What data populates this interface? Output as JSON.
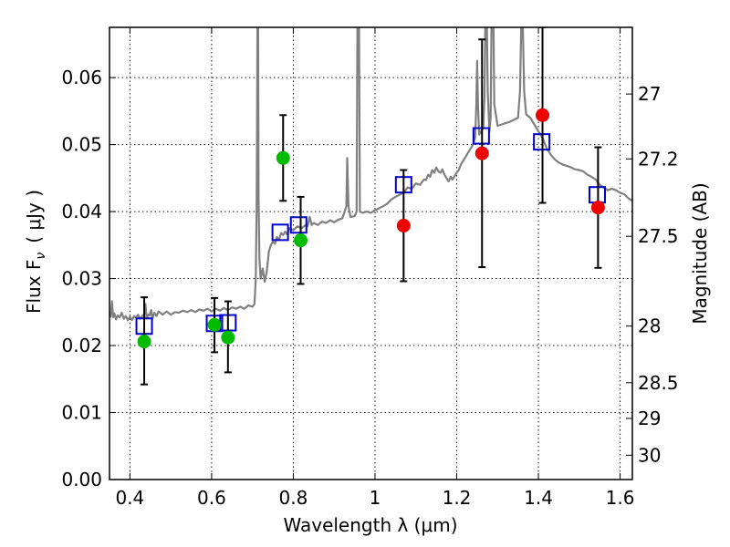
{
  "chart_data": {
    "type": "scatter",
    "title": "",
    "xlabel": "Wavelength  λ (μm)",
    "ylabel": "Flux  F",
    "ylabel_sub": "ν",
    "ylabel_unit": "( μJy )",
    "y2label": "Magnitude (AB)",
    "xlim": [
      0.35,
      1.63
    ],
    "ylim": [
      0.0,
      0.0675
    ],
    "grid": true,
    "xticks": [
      {
        "value": 0.4,
        "label": "0.4"
      },
      {
        "value": 0.6,
        "label": "0.6"
      },
      {
        "value": 0.8,
        "label": "0.8"
      },
      {
        "value": 1.0,
        "label": "1"
      },
      {
        "value": 1.2,
        "label": "1.2"
      },
      {
        "value": 1.4,
        "label": "1.4"
      },
      {
        "value": 1.6,
        "label": "1.6"
      }
    ],
    "yticks": [
      {
        "value": 0.0,
        "label": "0.00"
      },
      {
        "value": 0.01,
        "label": "0.01"
      },
      {
        "value": 0.02,
        "label": "0.02"
      },
      {
        "value": 0.03,
        "label": "0.03"
      },
      {
        "value": 0.04,
        "label": "0.04"
      },
      {
        "value": 0.05,
        "label": "0.05"
      },
      {
        "value": 0.06,
        "label": "0.06"
      }
    ],
    "y2ticks": [
      {
        "mag": 27,
        "label": "27"
      },
      {
        "mag": 27.2,
        "label": "27.2"
      },
      {
        "mag": 27.5,
        "label": "27.5"
      },
      {
        "mag": 28,
        "label": "28"
      },
      {
        "mag": 28.5,
        "label": "28.5"
      },
      {
        "mag": 29,
        "label": "29"
      },
      {
        "mag": 30,
        "label": "30"
      }
    ],
    "colors": {
      "model": "#808080",
      "template": "#0000cc",
      "optical": "#00bb00",
      "infrared": "#ee0000",
      "errorbar": "#000000"
    },
    "series": [
      {
        "kind": "line",
        "color": "model",
        "points": [
          [
            0.35,
            0.025
          ],
          [
            0.353,
            0.0243
          ],
          [
            0.356,
            0.0266
          ],
          [
            0.359,
            0.0242
          ],
          [
            0.362,
            0.0248
          ],
          [
            0.366,
            0.0239
          ],
          [
            0.37,
            0.0245
          ],
          [
            0.375,
            0.0242
          ],
          [
            0.38,
            0.0249
          ],
          [
            0.385,
            0.024
          ],
          [
            0.39,
            0.0244
          ],
          [
            0.395,
            0.0238
          ],
          [
            0.4,
            0.0243
          ],
          [
            0.405,
            0.0238
          ],
          [
            0.41,
            0.0244
          ],
          [
            0.415,
            0.0242
          ],
          [
            0.42,
            0.0246
          ],
          [
            0.425,
            0.024
          ],
          [
            0.43,
            0.0244
          ],
          [
            0.435,
            0.0247
          ],
          [
            0.438,
            0.0262
          ],
          [
            0.441,
            0.024
          ],
          [
            0.445,
            0.0246
          ],
          [
            0.448,
            0.0245
          ],
          [
            0.452,
            0.0253
          ],
          [
            0.455,
            0.024
          ],
          [
            0.46,
            0.0249
          ],
          [
            0.465,
            0.0244
          ],
          [
            0.47,
            0.0251
          ],
          [
            0.48,
            0.0246
          ],
          [
            0.49,
            0.0251
          ],
          [
            0.5,
            0.0246
          ],
          [
            0.51,
            0.025
          ],
          [
            0.52,
            0.0249
          ],
          [
            0.53,
            0.0252
          ],
          [
            0.54,
            0.025
          ],
          [
            0.55,
            0.0253
          ],
          [
            0.56,
            0.025
          ],
          [
            0.57,
            0.0254
          ],
          [
            0.58,
            0.0252
          ],
          [
            0.59,
            0.0255
          ],
          [
            0.6,
            0.0251
          ],
          [
            0.61,
            0.0255
          ],
          [
            0.62,
            0.0252
          ],
          [
            0.63,
            0.0256
          ],
          [
            0.64,
            0.0253
          ],
          [
            0.65,
            0.0257
          ],
          [
            0.66,
            0.0255
          ],
          [
            0.67,
            0.0258
          ],
          [
            0.68,
            0.0255
          ],
          [
            0.69,
            0.026
          ],
          [
            0.7,
            0.0258
          ],
          [
            0.705,
            0.0262
          ],
          [
            0.708,
            0.03
          ],
          [
            0.71,
            0.04
          ],
          [
            0.711,
            0.05
          ],
          [
            0.712,
            0.0675
          ],
          [
            0.714,
            0.0675
          ],
          [
            0.715,
            0.042
          ],
          [
            0.717,
            0.033
          ],
          [
            0.72,
            0.03
          ],
          [
            0.725,
            0.0315
          ],
          [
            0.73,
            0.0295
          ],
          [
            0.735,
            0.031
          ],
          [
            0.74,
            0.034
          ],
          [
            0.745,
            0.035
          ],
          [
            0.75,
            0.0355
          ],
          [
            0.755,
            0.0352
          ],
          [
            0.76,
            0.0362
          ],
          [
            0.765,
            0.0358
          ],
          [
            0.77,
            0.0368
          ],
          [
            0.775,
            0.0365
          ],
          [
            0.78,
            0.037
          ],
          [
            0.785,
            0.0366
          ],
          [
            0.79,
            0.0375
          ],
          [
            0.8,
            0.0372
          ],
          [
            0.81,
            0.0378
          ],
          [
            0.82,
            0.0375
          ],
          [
            0.83,
            0.038
          ],
          [
            0.835,
            0.0378
          ],
          [
            0.84,
            0.0392
          ],
          [
            0.845,
            0.038
          ],
          [
            0.85,
            0.0383
          ],
          [
            0.86,
            0.038
          ],
          [
            0.87,
            0.0385
          ],
          [
            0.88,
            0.0383
          ],
          [
            0.89,
            0.0387
          ],
          [
            0.9,
            0.0384
          ],
          [
            0.91,
            0.0388
          ],
          [
            0.92,
            0.039
          ],
          [
            0.93,
            0.0408
          ],
          [
            0.932,
            0.048
          ],
          [
            0.935,
            0.0408
          ],
          [
            0.94,
            0.0392
          ],
          [
            0.95,
            0.0393
          ],
          [
            0.955,
            0.04
          ],
          [
            0.957,
            0.0675
          ],
          [
            0.961,
            0.0675
          ],
          [
            0.963,
            0.04
          ],
          [
            0.97,
            0.0398
          ],
          [
            0.98,
            0.04
          ],
          [
            0.99,
            0.0398
          ],
          [
            1.0,
            0.0402
          ],
          [
            1.01,
            0.0405
          ],
          [
            1.02,
            0.0408
          ],
          [
            1.03,
            0.0412
          ],
          [
            1.04,
            0.0418
          ],
          [
            1.05,
            0.0422
          ],
          [
            1.06,
            0.0425
          ],
          [
            1.07,
            0.0428
          ],
          [
            1.08,
            0.0436
          ],
          [
            1.09,
            0.0434
          ],
          [
            1.1,
            0.0442
          ],
          [
            1.11,
            0.044
          ],
          [
            1.12,
            0.0448
          ],
          [
            1.125,
            0.0447
          ],
          [
            1.13,
            0.0455
          ],
          [
            1.135,
            0.0452
          ],
          [
            1.14,
            0.0462
          ],
          [
            1.145,
            0.0458
          ],
          [
            1.15,
            0.0466
          ],
          [
            1.155,
            0.046
          ],
          [
            1.16,
            0.0458
          ],
          [
            1.165,
            0.0463
          ],
          [
            1.17,
            0.0455
          ],
          [
            1.18,
            0.0445
          ],
          [
            1.185,
            0.0452
          ],
          [
            1.19,
            0.0448
          ],
          [
            1.2,
            0.0458
          ],
          [
            1.205,
            0.0462
          ],
          [
            1.21,
            0.047
          ],
          [
            1.22,
            0.048
          ],
          [
            1.23,
            0.049
          ],
          [
            1.24,
            0.05
          ],
          [
            1.245,
            0.051
          ],
          [
            1.248,
            0.056
          ],
          [
            1.25,
            0.0625
          ],
          [
            1.252,
            0.056
          ],
          [
            1.255,
            0.0515
          ],
          [
            1.26,
            0.052
          ],
          [
            1.265,
            0.0525
          ],
          [
            1.268,
            0.057
          ],
          [
            1.27,
            0.0675
          ],
          [
            1.274,
            0.0675
          ],
          [
            1.276,
            0.058
          ],
          [
            1.28,
            0.052
          ],
          [
            1.283,
            0.054
          ],
          [
            1.285,
            0.0675
          ],
          [
            1.29,
            0.0675
          ],
          [
            1.292,
            0.056
          ],
          [
            1.3,
            0.0528
          ],
          [
            1.31,
            0.053
          ],
          [
            1.32,
            0.0532
          ],
          [
            1.33,
            0.0534
          ],
          [
            1.34,
            0.0537
          ],
          [
            1.35,
            0.054
          ],
          [
            1.355,
            0.058
          ],
          [
            1.358,
            0.0675
          ],
          [
            1.362,
            0.0675
          ],
          [
            1.365,
            0.058
          ],
          [
            1.37,
            0.0545
          ],
          [
            1.38,
            0.054
          ],
          [
            1.39,
            0.053
          ],
          [
            1.4,
            0.052
          ],
          [
            1.41,
            0.051
          ],
          [
            1.42,
            0.0495
          ],
          [
            1.43,
            0.0485
          ],
          [
            1.44,
            0.0478
          ],
          [
            1.45,
            0.0473
          ],
          [
            1.46,
            0.047
          ],
          [
            1.47,
            0.0468
          ],
          [
            1.48,
            0.0466
          ],
          [
            1.49,
            0.0463
          ],
          [
            1.5,
            0.0462
          ],
          [
            1.51,
            0.046
          ],
          [
            1.52,
            0.0455
          ],
          [
            1.53,
            0.0452
          ],
          [
            1.54,
            0.0448
          ],
          [
            1.55,
            0.044
          ],
          [
            1.56,
            0.0436
          ],
          [
            1.57,
            0.0432
          ],
          [
            1.58,
            0.0434
          ],
          [
            1.59,
            0.0432
          ],
          [
            1.6,
            0.0428
          ],
          [
            1.61,
            0.0426
          ],
          [
            1.62,
            0.042
          ],
          [
            1.63,
            0.0416
          ]
        ]
      },
      {
        "kind": "squares",
        "color": "template",
        "points": [
          [
            0.435,
            0.0229
          ],
          [
            0.607,
            0.0233
          ],
          [
            0.64,
            0.0234
          ],
          [
            0.768,
            0.0369
          ],
          [
            0.813,
            0.038
          ],
          [
            1.07,
            0.044
          ],
          [
            1.26,
            0.0513
          ],
          [
            1.408,
            0.0504
          ],
          [
            1.544,
            0.0425
          ]
        ]
      },
      {
        "kind": "circles",
        "color": "optical",
        "points": [
          {
            "x": 0.435,
            "y": 0.0206,
            "yerr": [
              0.0142,
              0.0272
            ]
          },
          {
            "x": 0.607,
            "y": 0.0231,
            "yerr": [
              0.019,
              0.0271
            ]
          },
          {
            "x": 0.64,
            "y": 0.0212,
            "yerr": [
              0.016,
              0.0266
            ]
          },
          {
            "x": 0.775,
            "y": 0.048,
            "yerr": [
              0.0416,
              0.0544
            ]
          },
          {
            "x": 0.818,
            "y": 0.0357,
            "yerr": [
              0.0292,
              0.0422
            ]
          }
        ]
      },
      {
        "kind": "circles",
        "color": "infrared",
        "points": [
          {
            "x": 1.07,
            "y": 0.0379,
            "yerr": [
              0.0296,
              0.0462
            ]
          },
          {
            "x": 1.262,
            "y": 0.0487,
            "yerr": [
              0.0317,
              0.0657
            ]
          },
          {
            "x": 1.41,
            "y": 0.0544,
            "yerr": [
              0.0413,
              0.0675
            ]
          },
          {
            "x": 1.546,
            "y": 0.0406,
            "yerr": [
              0.0316,
              0.0496
            ]
          }
        ]
      }
    ]
  }
}
